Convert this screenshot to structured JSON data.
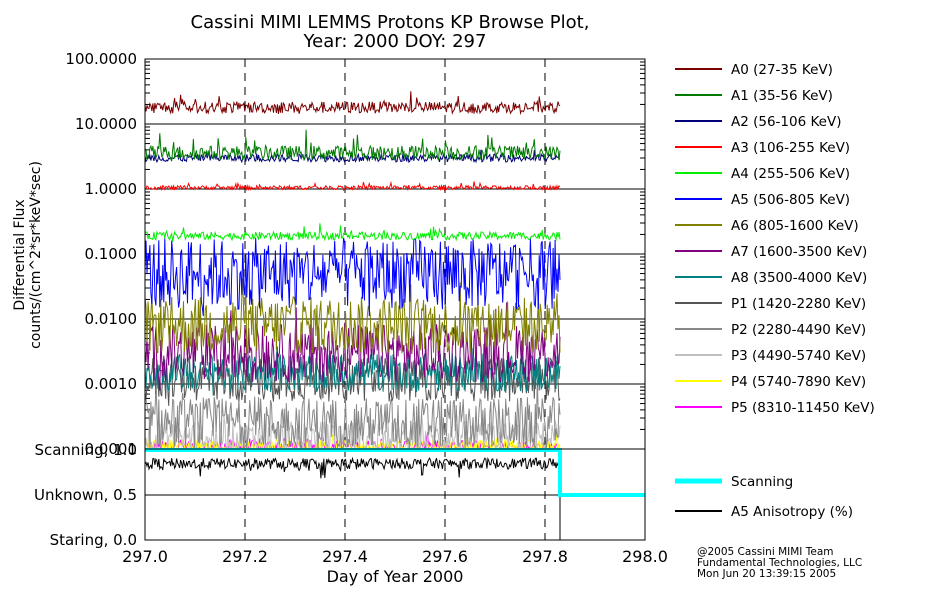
{
  "chart_data": {
    "type": "line",
    "title_line1": "Cassini MIMI LEMMS Protons KP Browse Plot,",
    "title_line2": "Year: 2000 DOY: 297",
    "xlabel": "Day of Year 2000",
    "xlim": [
      297.0,
      298.0
    ],
    "x_ticks": [
      "297.0",
      "297.2",
      "297.4",
      "297.6",
      "297.8",
      "298.0"
    ],
    "data_end_x": 297.83,
    "flux_panel": {
      "ylabel_line1": "Differential Flux",
      "ylabel_line2": "counts/(cm^2*sr*keV*sec)",
      "scale": "log",
      "ylim": [
        0.0001,
        100.0
      ],
      "y_ticks": [
        "100.0000",
        "10.0000",
        "1.0000",
        "0.1000",
        "0.0100",
        "0.0010",
        "0.0001"
      ],
      "series": [
        {
          "name": "A0 (27-35 KeV)",
          "color": "#7a0000",
          "level": 18,
          "spread": 0.09,
          "spike": 0.12
        },
        {
          "name": "A1 (35-56 KeV)",
          "color": "#007a00",
          "level": 3.6,
          "spread": 0.11,
          "spike": 0.2
        },
        {
          "name": "A2 (56-106 KeV)",
          "color": "#00007a",
          "level": 3.0,
          "spread": 0.06,
          "spike": 0.08
        },
        {
          "name": "A3 (106-255 KeV)",
          "color": "#ff0000",
          "level": 1.05,
          "spread": 0.03,
          "spike": 0.05
        },
        {
          "name": "A4 (255-506 KeV)",
          "color": "#00ee00",
          "level": 0.19,
          "spread": 0.06,
          "spike": 0.1
        },
        {
          "name": "A5 (506-805 KeV)",
          "color": "#0000ff",
          "level": 0.05,
          "spread": 0.55,
          "spike": 0.3
        },
        {
          "name": "A6 (805-1600 KeV)",
          "color": "#808000",
          "level": 0.008,
          "spread": 0.45,
          "spike": 0.3
        },
        {
          "name": "A7 (1600-3500 KeV)",
          "color": "#800080",
          "level": 0.003,
          "spread": 0.45,
          "spike": 0.3
        },
        {
          "name": "A8 (3500-4000 KeV)",
          "color": "#008080",
          "level": 0.0015,
          "spread": 0.3,
          "spike": 0.2
        },
        {
          "name": "P1 (1420-2280 KeV)",
          "color": "#555555",
          "level": 0.0012,
          "spread": 0.35,
          "spike": 0.2
        },
        {
          "name": "P2 (2280-4490 KeV)",
          "color": "#888888",
          "level": 0.00025,
          "spread": 0.4,
          "spike": 0.25
        },
        {
          "name": "P3 (4490-5740 KeV)",
          "color": "#c0c0c0",
          "level": 0.00015,
          "spread": 0.25,
          "spike": 0.15
        },
        {
          "name": "P4 (5740-7890 KeV)",
          "color": "#ffff00",
          "level": 0.00011,
          "spread": 0.1,
          "spike": 0.1
        },
        {
          "name": "P5 (8310-11450 KeV)",
          "color": "#ff00ff",
          "level": 0.00011,
          "spread": 0.1,
          "spike": 0.1
        }
      ]
    },
    "mode_panel": {
      "y_ticks": [
        "Scanning, 1.0",
        "Unknown, 0.5",
        "Staring, 0.0"
      ],
      "ylim": [
        0.0,
        1.0
      ],
      "series": [
        {
          "name": "Scanning",
          "color": "#00ffff",
          "steps": [
            [
              297.0,
              1.0
            ],
            [
              297.83,
              1.0
            ],
            [
              297.83,
              0.5
            ],
            [
              298.0,
              0.5
            ]
          ]
        },
        {
          "name": "A5 Anisotropy (%)",
          "color": "#000000",
          "level": 0.85,
          "spread": 0.06
        }
      ]
    }
  },
  "credit": {
    "line1": "@2005 Cassini MIMI Team",
    "line2": "Fundamental Technologies, LLC",
    "line3": "Mon Jun 20 13:39:15 2005"
  }
}
